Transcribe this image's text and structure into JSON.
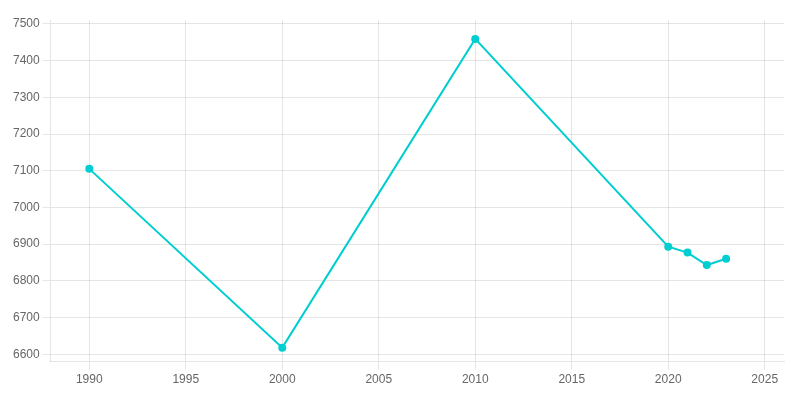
{
  "chart_data": {
    "type": "line",
    "x": [
      1990,
      2000,
      2010,
      2020,
      2021,
      2022,
      2023
    ],
    "values": [
      7105,
      6618,
      7459,
      6893,
      6877,
      6843,
      6860
    ],
    "color": "#00CED1",
    "marker": "circle",
    "xlim": [
      1988,
      2026
    ],
    "xticks": [
      1990,
      1995,
      2000,
      2005,
      2010,
      2015,
      2020,
      2025
    ],
    "ylim": [
      6580,
      7510
    ],
    "yticks": [
      6600,
      6700,
      6800,
      6900,
      7000,
      7100,
      7200,
      7300,
      7400,
      7500
    ],
    "grid": true
  }
}
